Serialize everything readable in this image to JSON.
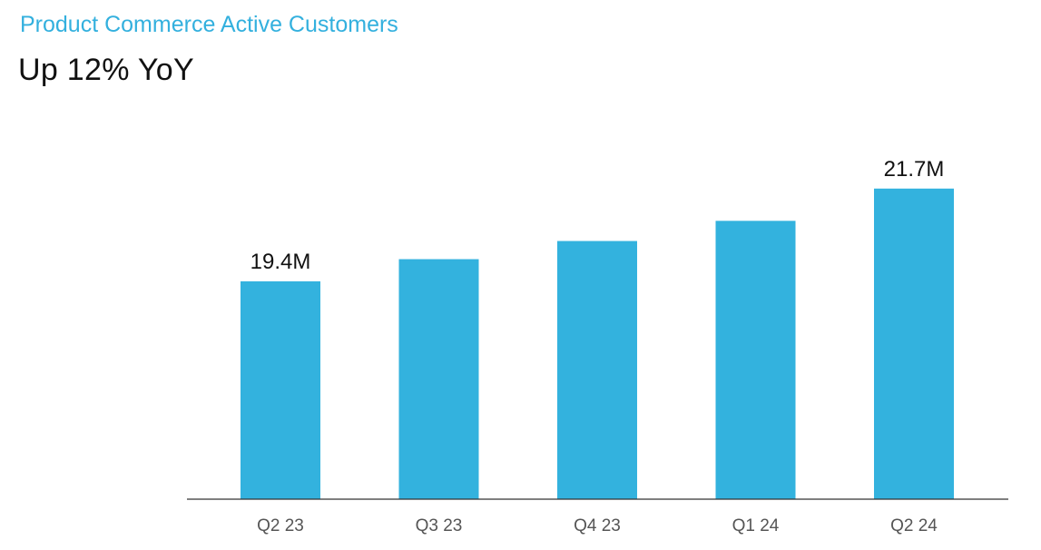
{
  "header": {
    "kicker": "Product Commerce Active Customers",
    "headline": "Up 12% YoY"
  },
  "colors": {
    "accent": "#33b0de",
    "bar": "#33b2de",
    "axis": "#333333",
    "text": "#111111",
    "tick_text": "#555555"
  },
  "chart_data": {
    "type": "bar",
    "categories": [
      "Q2 23",
      "Q3 23",
      "Q4 23",
      "Q1 24",
      "Q2 24"
    ],
    "values": [
      19.4,
      19.95,
      20.4,
      20.9,
      21.7
    ],
    "unit": "M",
    "data_labels": [
      "19.4M",
      "",
      "",
      "",
      "21.7M"
    ],
    "ylim": [
      14.0,
      23.0
    ],
    "grid": false,
    "legend": "none"
  }
}
